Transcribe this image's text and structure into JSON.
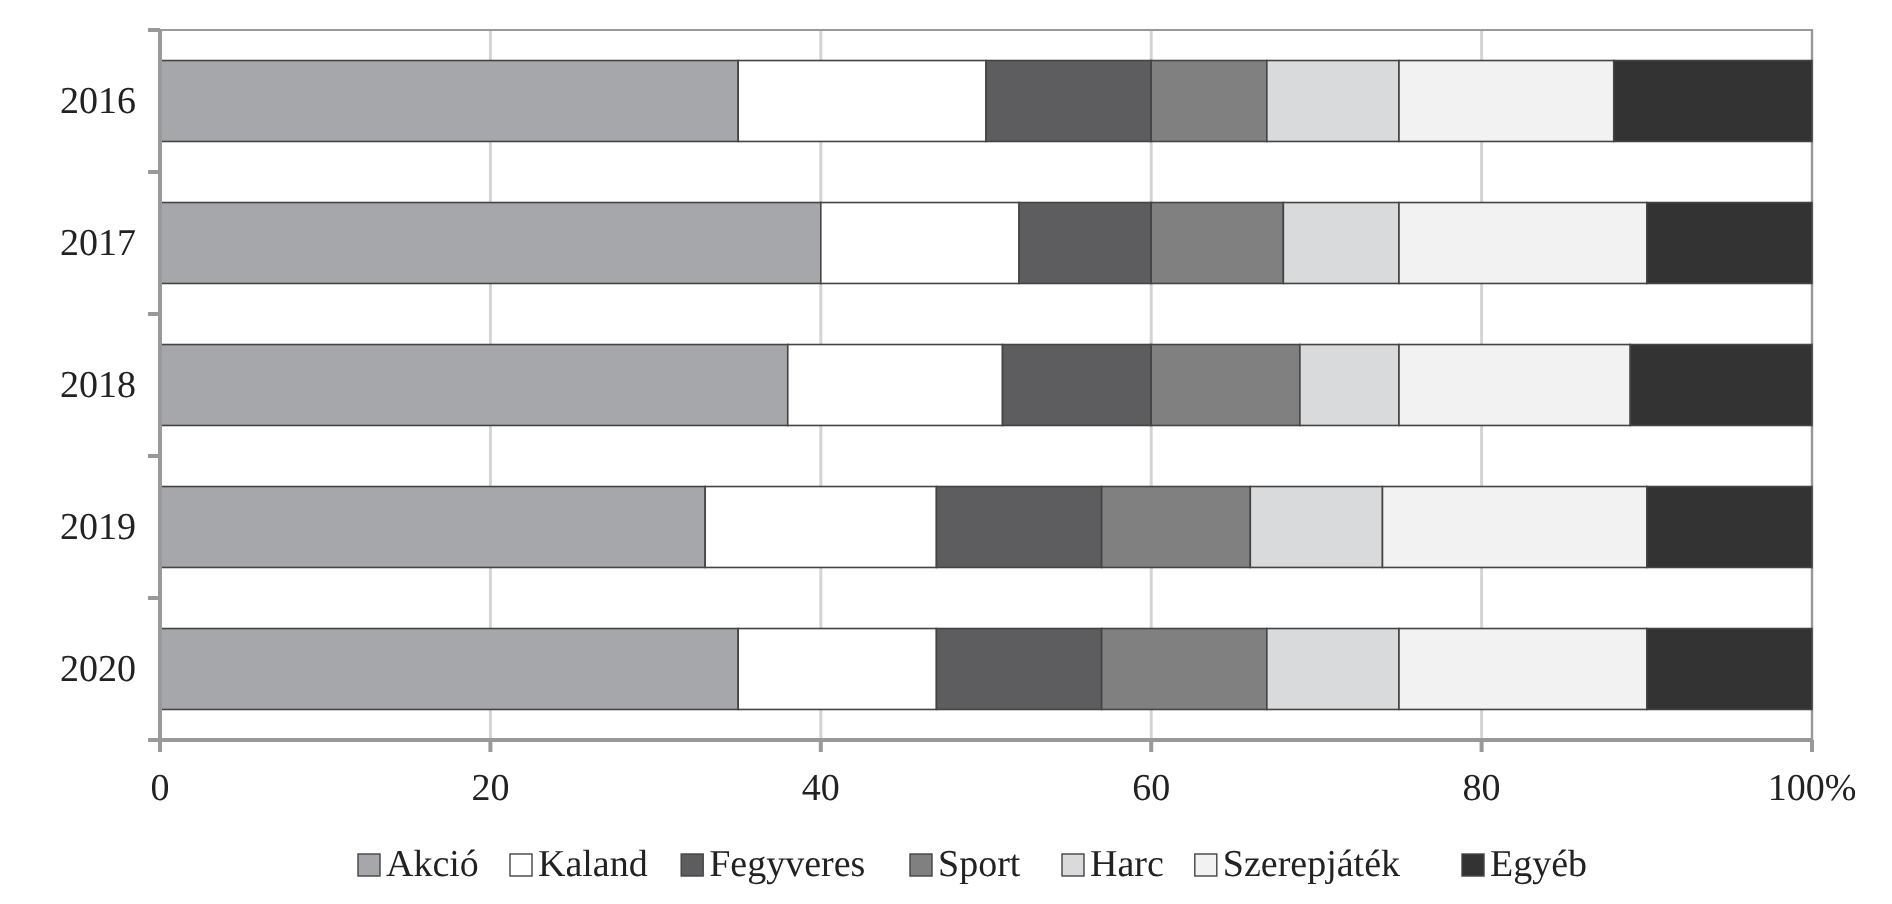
{
  "chart_data": {
    "type": "bar",
    "orientation": "horizontal",
    "stacked": true,
    "categories": [
      "2016",
      "2017",
      "2018",
      "2019",
      "2020"
    ],
    "series": [
      {
        "name": "Akció",
        "color": "#a6a7aa",
        "values": [
          35,
          40,
          38,
          33,
          35
        ]
      },
      {
        "name": "Kaland",
        "color": "#ffffff",
        "values": [
          15,
          12,
          13,
          14,
          12
        ]
      },
      {
        "name": "Fegyveres",
        "color": "#5d5d5f",
        "values": [
          10,
          8,
          9,
          10,
          10
        ]
      },
      {
        "name": "Sport",
        "color": "#808080",
        "values": [
          7,
          8,
          9,
          9,
          10
        ]
      },
      {
        "name": "Harc",
        "color": "#d9dadb",
        "values": [
          8,
          7,
          6,
          8,
          8
        ]
      },
      {
        "name": "Szerepjáték",
        "color": "#f2f2f2",
        "values": [
          13,
          15,
          14,
          16,
          15
        ]
      },
      {
        "name": "Egyéb",
        "color": "#333333",
        "values": [
          12,
          10,
          11,
          10,
          10
        ]
      }
    ],
    "xlim": [
      0,
      100
    ],
    "xticks": [
      0,
      20,
      40,
      60,
      80,
      {
        "value": 100,
        "label": "100%"
      }
    ],
    "grid": "x",
    "legend": "bottom"
  }
}
